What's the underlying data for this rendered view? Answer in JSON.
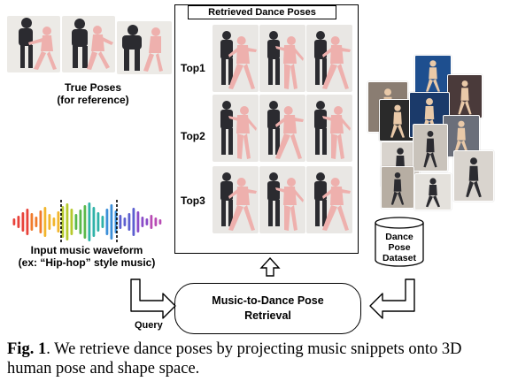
{
  "true_poses": {
    "title_line1": "True Poses",
    "title_line2": "(for reference)"
  },
  "results": {
    "title": "Retrieved Dance Poses",
    "rows": [
      {
        "label": "Top1"
      },
      {
        "label": "Top2"
      },
      {
        "label": "Top3"
      }
    ]
  },
  "waveform": {
    "label_line1": "Input music waveform",
    "label_line2": "(ex: “Hip-hop” style music)"
  },
  "dataset": {
    "line1": "Dance",
    "line2": "Pose",
    "line3": "Dataset"
  },
  "retrieval": {
    "line1": "Music-to-Dance Pose",
    "line2": "Retrieval"
  },
  "query_label": "Query",
  "caption": {
    "prefix": "Fig. 1",
    "text": ". We retrieve dance poses by projecting music snippets onto 3D human pose and shape space."
  },
  "colors": {
    "mesh": "#eeb0ad",
    "dark_clothing": "#2b2b30",
    "photo_bg": "#e9e7e4"
  }
}
